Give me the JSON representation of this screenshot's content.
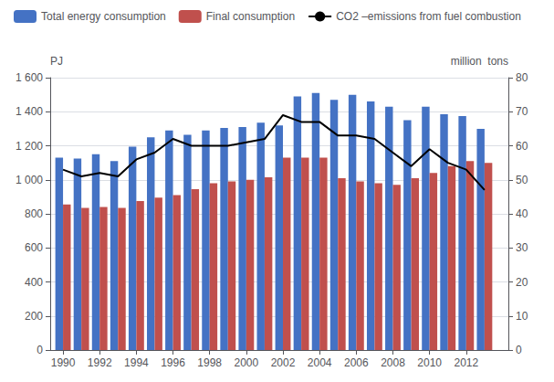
{
  "chart_data": {
    "type": "bar",
    "ylabel": "PJ",
    "y2label": "million  tons",
    "x": [
      1990,
      1991,
      1992,
      1993,
      1994,
      1995,
      1996,
      1997,
      1998,
      1999,
      2000,
      2001,
      2002,
      2003,
      2004,
      2005,
      2006,
      2007,
      2008,
      2009,
      2010,
      2011,
      2012,
      2013
    ],
    "series": [
      {
        "name": "Total energy consumption",
        "type": "bar",
        "color": "#4472C4",
        "values": [
          1130,
          1125,
          1150,
          1110,
          1195,
          1250,
          1290,
          1265,
          1290,
          1305,
          1310,
          1335,
          1320,
          1490,
          1510,
          1470,
          1500,
          1460,
          1430,
          1350,
          1430,
          1385,
          1375,
          1300
        ]
      },
      {
        "name": "Final consumption",
        "type": "bar",
        "color": "#C0504D",
        "values": [
          855,
          835,
          840,
          835,
          875,
          895,
          910,
          945,
          980,
          990,
          1000,
          1015,
          1130,
          1130,
          1130,
          1010,
          990,
          980,
          970,
          1010,
          1040,
          1080,
          1110,
          1100
        ]
      },
      {
        "name": "CO2 –emissions from fuel combustion",
        "type": "line",
        "color": "#000000",
        "axis": "y2",
        "values": [
          53,
          51,
          52,
          51,
          56,
          58,
          62,
          60,
          60,
          60,
          61,
          62,
          69,
          67,
          67,
          63,
          63,
          62,
          58,
          54,
          59,
          55,
          53,
          47
        ]
      }
    ],
    "xlim": [
      1989.3,
      2014.3
    ],
    "xticks": [
      1990,
      1992,
      1994,
      1996,
      1998,
      2000,
      2002,
      2004,
      2006,
      2008,
      2010,
      2012
    ],
    "ylim": [
      0,
      1600
    ],
    "yticks": [
      0,
      200,
      400,
      600,
      800,
      {
        "value": 1000,
        "label": "1 000"
      },
      {
        "value": 1200,
        "label": "1 200"
      },
      {
        "value": 1400,
        "label": "1 400"
      },
      {
        "value": 1600,
        "label": "1 600"
      }
    ],
    "y2lim": [
      0,
      80
    ],
    "y2ticks": [
      0,
      10,
      20,
      30,
      40,
      50,
      60,
      70,
      80
    ],
    "grid": true,
    "legend": "upper left"
  }
}
